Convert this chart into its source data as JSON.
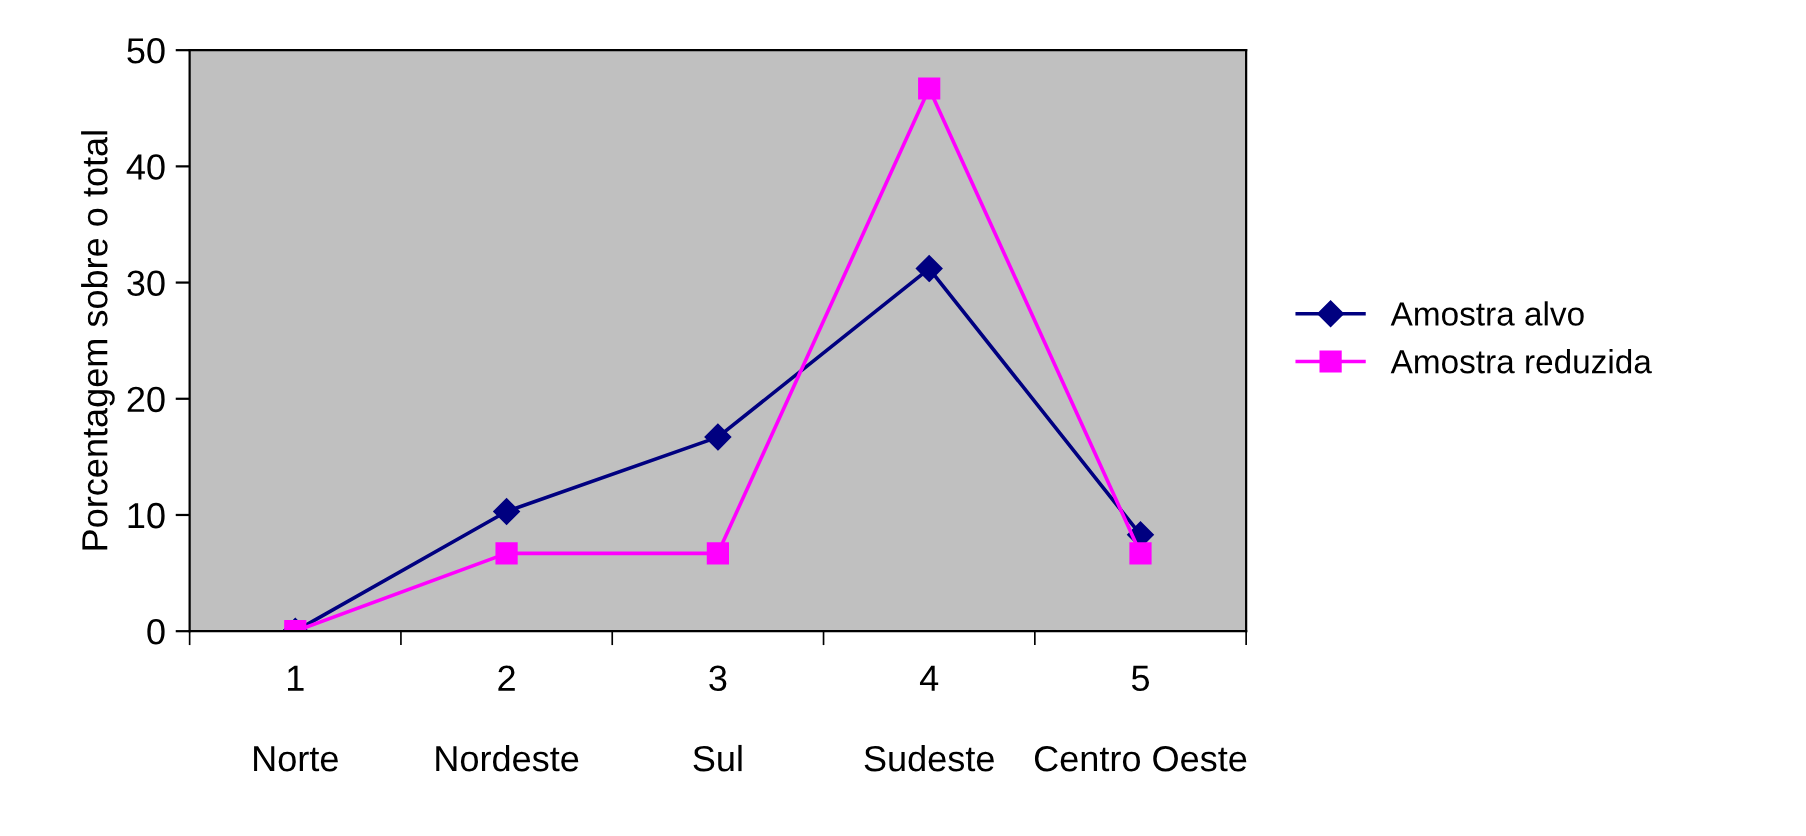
{
  "chart_data": {
    "type": "line",
    "ylabel": "Porcentagem sobre o total",
    "categories": [
      "1\n\nNorte",
      "2\n\nNordeste",
      "3\n\nSul",
      "4\n\nSudeste",
      "5\n\nCentro Oeste"
    ],
    "series": [
      {
        "name": "Amostra alvo",
        "color": "#000080",
        "marker": "diamond",
        "values": [
          0,
          10.3,
          16.7,
          31.2,
          8.3
        ]
      },
      {
        "name": "Amostra reduzida",
        "color": "#ff00ff",
        "marker": "square",
        "values": [
          0,
          6.7,
          6.7,
          46.7,
          6.7
        ]
      }
    ],
    "ylim": [
      0,
      50
    ],
    "yticks": [
      0,
      10,
      20,
      30,
      40,
      50
    ],
    "grid": false,
    "legend": "right",
    "line_style": "solid"
  }
}
